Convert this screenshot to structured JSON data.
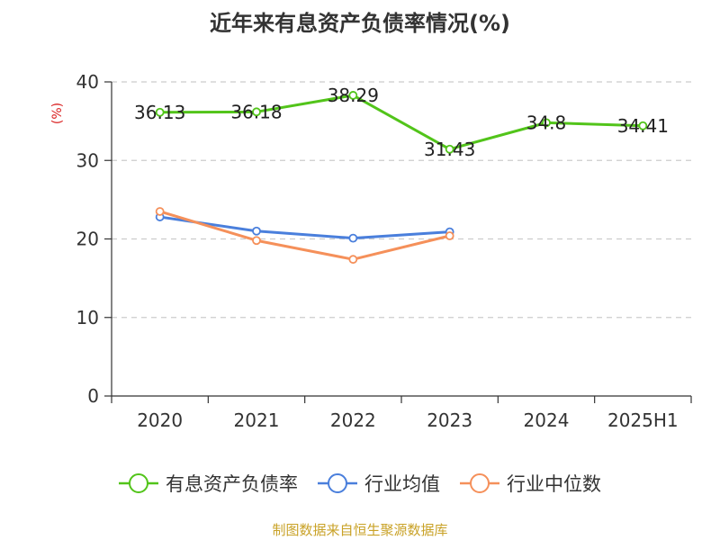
{
  "chart_data": {
    "type": "line",
    "title": "近年来有息资产负债率情况(%)",
    "ylabel": "(%)",
    "xlabel": "",
    "categories": [
      "2020",
      "2021",
      "2022",
      "2023",
      "2024",
      "2025H1"
    ],
    "ylim": [
      0,
      40
    ],
    "yticks": [
      0,
      10,
      20,
      30,
      40
    ],
    "grid": true,
    "legend_position": "bottom",
    "series": [
      {
        "name": "有息资产负债率",
        "color": "#52c41a",
        "values": [
          36.13,
          36.18,
          38.29,
          31.43,
          34.8,
          34.41
        ],
        "labels": [
          "36.13",
          "36.18",
          "38.29",
          "31.43",
          "34.8",
          "34.41"
        ]
      },
      {
        "name": "行业均值",
        "color": "#4a7fdc",
        "values": [
          22.8,
          21.0,
          20.1,
          20.9,
          null,
          null
        ]
      },
      {
        "name": "行业中位数",
        "color": "#f5905a",
        "values": [
          23.5,
          19.8,
          17.4,
          20.4,
          null,
          null
        ]
      }
    ]
  },
  "source": {
    "text": "制图数据来自恒生聚源数据库",
    "color": "#c9a227"
  }
}
